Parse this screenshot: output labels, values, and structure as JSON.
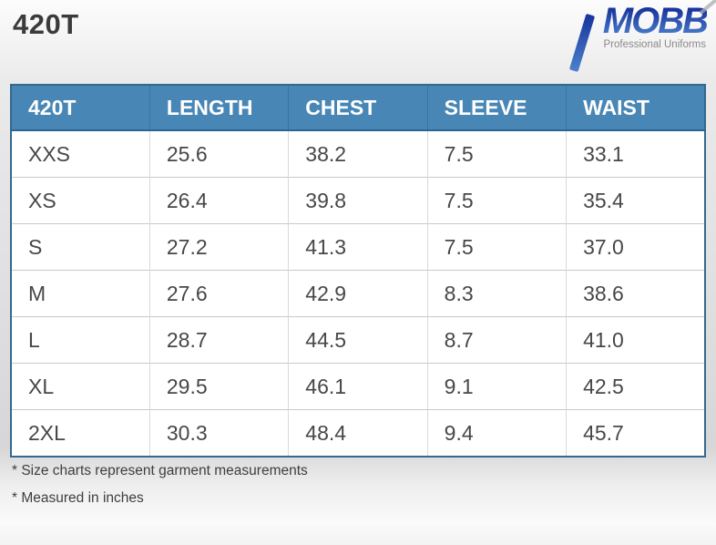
{
  "title": "420T",
  "logo": {
    "brand": "MOBB",
    "tagline": "Professional Uniforms"
  },
  "table": {
    "headers": [
      "420T",
      "LENGTH",
      "CHEST",
      "SLEEVE",
      "WAIST"
    ],
    "rows": [
      [
        "XXS",
        "25.6",
        "38.2",
        "7.5",
        "33.1"
      ],
      [
        "XS",
        "26.4",
        "39.8",
        "7.5",
        "35.4"
      ],
      [
        "S",
        "27.2",
        "41.3",
        "7.5",
        "37.0"
      ],
      [
        "M",
        "27.6",
        "42.9",
        "8.3",
        "38.6"
      ],
      [
        "L",
        "28.7",
        "44.5",
        "8.7",
        "41.0"
      ],
      [
        "XL",
        "29.5",
        "46.1",
        "9.1",
        "42.5"
      ],
      [
        "2XL",
        "30.3",
        "48.4",
        "9.4",
        "45.7"
      ]
    ]
  },
  "notes": [
    "* Size charts represent garment measurements",
    "* Measured in inches"
  ],
  "theme": {
    "header_bg": "#4886b5",
    "header_text": "#ffffff",
    "header_border": "#2e6494",
    "header_divider": "#3a73a3",
    "table_border": "#33688f",
    "row_line": "#c9c9c9",
    "col_line": "#d9d9d9",
    "cell_text": "#474747",
    "title_color": "#3b3b3b",
    "note_color": "#3e3e3e",
    "brand_top": "#16339b",
    "brand_bottom": "#4d81cd",
    "tagline_color": "#8a8a8a"
  },
  "chart_data": {
    "type": "table",
    "title": "420T",
    "columns": [
      "420T",
      "LENGTH",
      "CHEST",
      "SLEEVE",
      "WAIST"
    ],
    "rows": [
      [
        "XXS",
        25.6,
        38.2,
        7.5,
        33.1
      ],
      [
        "XS",
        26.4,
        39.8,
        7.5,
        35.4
      ],
      [
        "S",
        27.2,
        41.3,
        7.5,
        37.0
      ],
      [
        "M",
        27.6,
        42.9,
        8.3,
        38.6
      ],
      [
        "L",
        28.7,
        44.5,
        8.7,
        41.0
      ],
      [
        "XL",
        29.5,
        46.1,
        9.1,
        42.5
      ],
      [
        "2XL",
        30.3,
        48.4,
        9.4,
        45.7
      ]
    ],
    "notes": [
      "* Size charts represent garment measurements",
      "* Measured in inches"
    ],
    "units": "inches"
  }
}
